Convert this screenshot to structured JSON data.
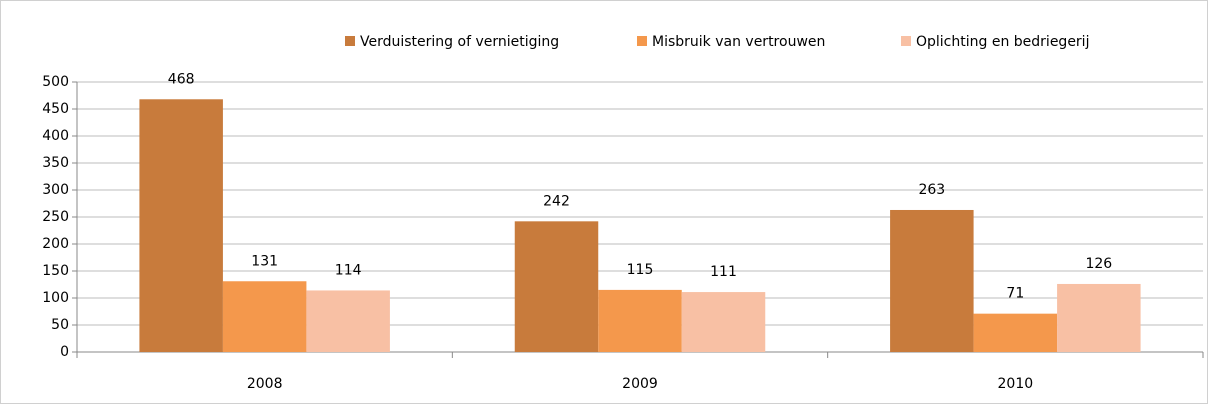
{
  "chart_data": {
    "type": "bar",
    "categories": [
      "2008",
      "2009",
      "2010"
    ],
    "series": [
      {
        "name": "Verduistering of vernietiging",
        "color": "#c87b3c",
        "values": [
          468,
          242,
          263
        ]
      },
      {
        "name": "Misbruik van vertrouwen",
        "color": "#f4984c",
        "values": [
          131,
          115,
          71
        ]
      },
      {
        "name": "Oplichting en bedriegerij",
        "color": "#f8c0a4",
        "values": [
          114,
          111,
          126
        ]
      }
    ],
    "ylim": [
      0,
      500
    ],
    "yticks": [
      0,
      50,
      100,
      150,
      200,
      250,
      300,
      350,
      400,
      450,
      500
    ],
    "grid": true,
    "legend": "top"
  }
}
